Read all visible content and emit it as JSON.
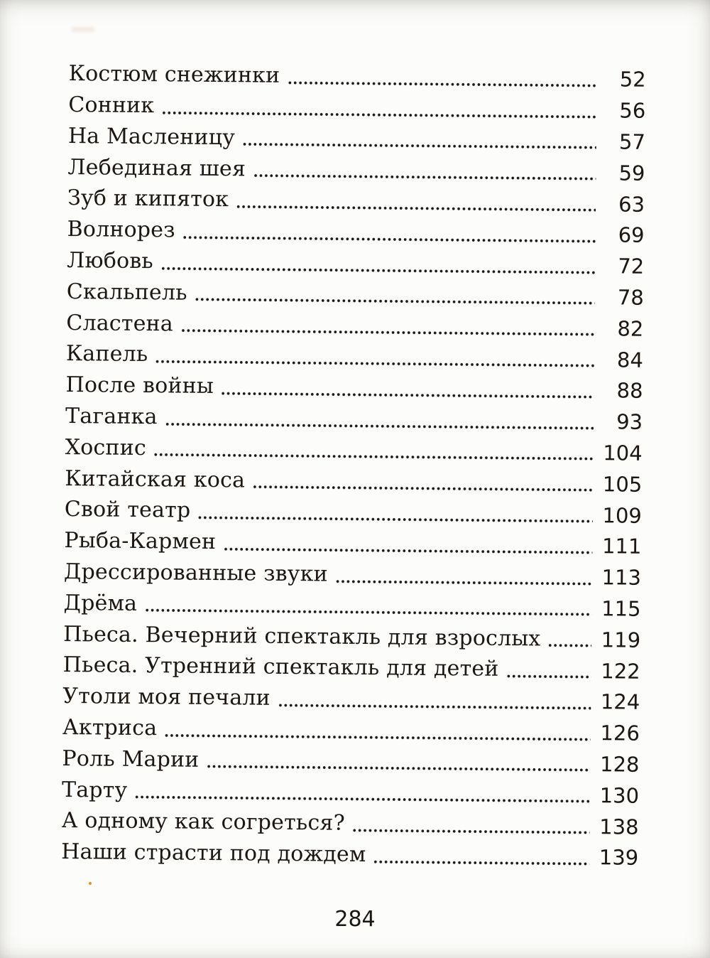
{
  "page": {
    "folio": "284",
    "ink": "#1c1712",
    "background": "#fcfcfa",
    "speck_color": "#ef9208",
    "smudge_color": "#f2e4de"
  },
  "toc_entries": [
    {
      "title": "Костюм снежинки",
      "page": "52"
    },
    {
      "title": "Сонник",
      "page": "56"
    },
    {
      "title": "На Масленицу",
      "page": "57"
    },
    {
      "title": "Лебединая шея",
      "page": "59"
    },
    {
      "title": "Зуб и кипяток",
      "page": "63"
    },
    {
      "title": "Волнорез",
      "page": "69"
    },
    {
      "title": "Любовь",
      "page": "72"
    },
    {
      "title": "Скальпель",
      "page": "78"
    },
    {
      "title": "Сластена",
      "page": "82"
    },
    {
      "title": "Капель",
      "page": "84"
    },
    {
      "title": "После войны",
      "page": "88"
    },
    {
      "title": "Таганка",
      "page": "93"
    },
    {
      "title": "Хоспис",
      "page": "104"
    },
    {
      "title": "Китайская коса",
      "page": "105"
    },
    {
      "title": "Свой театр",
      "page": "109"
    },
    {
      "title": "Рыба-Кармен",
      "page": "111"
    },
    {
      "title": "Дрессированные звуки",
      "page": "113"
    },
    {
      "title": "Дрёма",
      "page": "115"
    },
    {
      "title": "Пьеса. Вечерний спектакль для взрослых",
      "page": "119"
    },
    {
      "title": "Пьеса. Утренний спектакль для детей",
      "page": "122"
    },
    {
      "title": "Утоли моя печали",
      "page": "124"
    },
    {
      "title": "Актриса",
      "page": "126"
    },
    {
      "title": "Роль Марии",
      "page": "128"
    },
    {
      "title": "Тарту",
      "page": "130"
    },
    {
      "title": "А одному как согреться?",
      "page": "138"
    },
    {
      "title": "Наши страсти под дождем",
      "page": "139"
    }
  ]
}
